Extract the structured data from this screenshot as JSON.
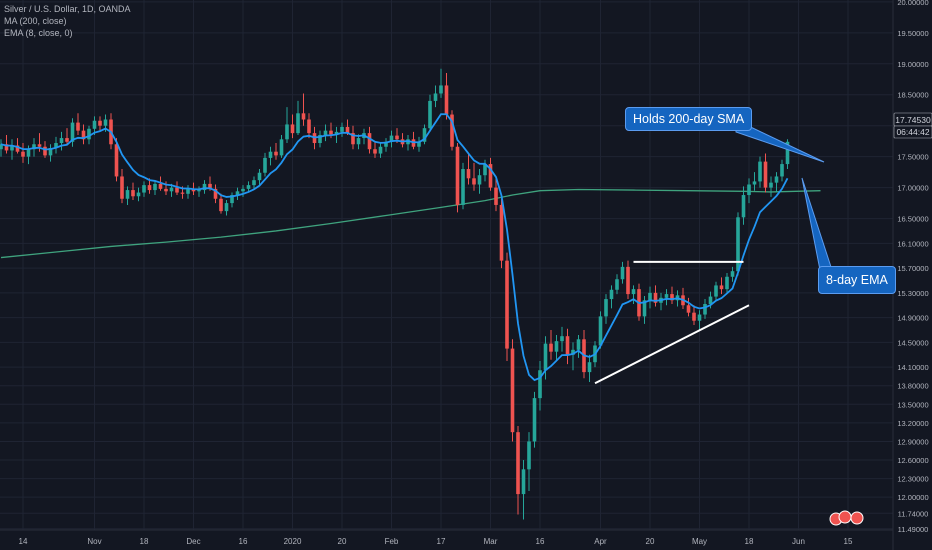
{
  "header": {
    "symbol": "Silver / U.S. Dollar, 1D, OANDA",
    "indicator1": "MA (200, close)",
    "indicator2": "EMA (8, close, 0)"
  },
  "annotations": {
    "sma_callout": "Holds 200-day SMA",
    "ema_callout": "8-day EMA"
  },
  "price_axis": {
    "current_price": "17.74530",
    "countdown": "06:44:42"
  },
  "colors": {
    "background": "#131722",
    "grid": "#1f2433",
    "up": "#26a69a",
    "down": "#ef5350",
    "sma": "#3fa37e",
    "ema": "#2196f3",
    "trendline": "#ffffff",
    "callout": "#1565c0"
  },
  "chart_data": {
    "type": "candlestick",
    "ylim": [
      11.47,
      20.03
    ],
    "y_ticks": [
      11.49,
      11.74,
      12.0,
      12.3,
      12.6,
      12.9,
      13.2,
      13.5,
      13.8,
      14.1,
      14.5,
      14.9,
      15.3,
      15.7,
      16.1,
      16.5,
      17.0,
      17.5,
      18.0,
      18.5,
      19.0,
      19.5,
      20.0
    ],
    "y_tick_labels": [
      "11.49000",
      "11.74000",
      "12.00000",
      "12.30000",
      "12.60000",
      "12.90000",
      "13.20000",
      "13.50000",
      "13.80000",
      "14.10000",
      "14.50000",
      "14.90000",
      "15.30000",
      "15.70000",
      "16.10000",
      "16.50000",
      "17.00000",
      "17.50000",
      "18.00000",
      "18.50000",
      "19.00000",
      "19.50000",
      "20.00000"
    ],
    "x_ticks": [
      {
        "i": 4,
        "label": "14"
      },
      {
        "i": 17,
        "label": "Nov"
      },
      {
        "i": 26,
        "label": "18"
      },
      {
        "i": 35,
        "label": "Dec"
      },
      {
        "i": 44,
        "label": "16"
      },
      {
        "i": 53,
        "label": "2020"
      },
      {
        "i": 62,
        "label": "20"
      },
      {
        "i": 71,
        "label": "Feb"
      },
      {
        "i": 80,
        "label": "17"
      },
      {
        "i": 89,
        "label": "Mar"
      },
      {
        "i": 98,
        "label": "16"
      },
      {
        "i": 109,
        "label": "Apr"
      },
      {
        "i": 118,
        "label": "20"
      },
      {
        "i": 127,
        "label": "May"
      },
      {
        "i": 136,
        "label": "18"
      },
      {
        "i": 145,
        "label": "Jun"
      },
      {
        "i": 154,
        "label": "15"
      }
    ],
    "candles": [
      [
        17.62,
        17.78,
        17.5,
        17.7
      ],
      [
        17.7,
        17.85,
        17.55,
        17.6
      ],
      [
        17.6,
        17.78,
        17.45,
        17.68
      ],
      [
        17.68,
        17.8,
        17.55,
        17.58
      ],
      [
        17.58,
        17.72,
        17.4,
        17.5
      ],
      [
        17.5,
        17.68,
        17.38,
        17.62
      ],
      [
        17.62,
        17.8,
        17.5,
        17.7
      ],
      [
        17.7,
        17.88,
        17.58,
        17.66
      ],
      [
        17.66,
        17.75,
        17.48,
        17.52
      ],
      [
        17.52,
        17.7,
        17.42,
        17.64
      ],
      [
        17.64,
        17.82,
        17.55,
        17.72
      ],
      [
        17.72,
        17.9,
        17.6,
        17.8
      ],
      [
        17.8,
        17.96,
        17.68,
        17.74
      ],
      [
        17.74,
        18.12,
        17.66,
        18.05
      ],
      [
        18.05,
        18.2,
        17.85,
        17.92
      ],
      [
        17.92,
        18.02,
        17.7,
        17.78
      ],
      [
        17.78,
        18.0,
        17.7,
        17.95
      ],
      [
        17.95,
        18.15,
        17.85,
        18.08
      ],
      [
        18.08,
        18.15,
        17.92,
        18.0
      ],
      [
        18.0,
        18.18,
        17.9,
        18.1
      ],
      [
        18.1,
        18.2,
        17.62,
        17.7
      ],
      [
        17.7,
        17.8,
        17.1,
        17.18
      ],
      [
        17.18,
        17.3,
        16.75,
        16.82
      ],
      [
        16.82,
        17.02,
        16.72,
        16.96
      ],
      [
        16.96,
        17.08,
        16.8,
        16.86
      ],
      [
        16.86,
        17.0,
        16.78,
        16.92
      ],
      [
        16.92,
        17.1,
        16.85,
        17.04
      ],
      [
        17.04,
        17.15,
        16.9,
        16.96
      ],
      [
        16.96,
        17.12,
        16.88,
        17.06
      ],
      [
        17.06,
        17.18,
        16.95,
        16.98
      ],
      [
        16.98,
        17.1,
        16.88,
        16.94
      ],
      [
        16.94,
        17.06,
        16.85,
        17.0
      ],
      [
        17.0,
        17.1,
        16.88,
        16.92
      ],
      [
        16.92,
        17.02,
        16.82,
        16.9
      ],
      [
        16.9,
        17.04,
        16.82,
        16.98
      ],
      [
        16.98,
        17.08,
        16.88,
        16.94
      ],
      [
        16.94,
        17.02,
        16.85,
        16.96
      ],
      [
        16.96,
        17.12,
        16.9,
        17.06
      ],
      [
        17.06,
        17.18,
        16.95,
        16.98
      ],
      [
        16.98,
        17.05,
        16.75,
        16.82
      ],
      [
        16.82,
        16.9,
        16.58,
        16.62
      ],
      [
        16.62,
        16.8,
        16.55,
        16.75
      ],
      [
        16.75,
        16.92,
        16.68,
        16.88
      ],
      [
        16.88,
        17.0,
        16.8,
        16.94
      ],
      [
        16.94,
        17.04,
        16.85,
        16.98
      ],
      [
        16.98,
        17.1,
        16.92,
        17.04
      ],
      [
        17.04,
        17.18,
        16.98,
        17.12
      ],
      [
        17.12,
        17.3,
        17.05,
        17.24
      ],
      [
        17.24,
        17.56,
        17.18,
        17.48
      ],
      [
        17.48,
        17.66,
        17.36,
        17.58
      ],
      [
        17.58,
        17.72,
        17.45,
        17.52
      ],
      [
        17.52,
        17.85,
        17.48,
        17.78
      ],
      [
        17.78,
        18.3,
        17.72,
        18.02
      ],
      [
        18.02,
        18.18,
        17.8,
        17.88
      ],
      [
        17.88,
        18.4,
        17.85,
        18.2
      ],
      [
        18.2,
        18.52,
        18.0,
        18.1
      ],
      [
        18.1,
        18.2,
        17.8,
        17.88
      ],
      [
        17.88,
        17.98,
        17.62,
        17.72
      ],
      [
        17.72,
        17.92,
        17.65,
        17.85
      ],
      [
        17.85,
        18.02,
        17.75,
        17.92
      ],
      [
        17.92,
        18.05,
        17.8,
        17.86
      ],
      [
        17.86,
        17.98,
        17.72,
        17.9
      ],
      [
        17.9,
        18.05,
        17.82,
        17.98
      ],
      [
        17.98,
        18.1,
        17.85,
        17.88
      ],
      [
        17.88,
        18.0,
        17.62,
        17.7
      ],
      [
        17.7,
        17.86,
        17.62,
        17.8
      ],
      [
        17.8,
        17.95,
        17.7,
        17.88
      ],
      [
        17.88,
        17.98,
        17.55,
        17.62
      ],
      [
        17.62,
        17.75,
        17.48,
        17.55
      ],
      [
        17.55,
        17.72,
        17.48,
        17.66
      ],
      [
        17.66,
        17.8,
        17.58,
        17.74
      ],
      [
        17.74,
        17.92,
        17.65,
        17.84
      ],
      [
        17.84,
        17.96,
        17.72,
        17.78
      ],
      [
        17.78,
        17.88,
        17.65,
        17.7
      ],
      [
        17.7,
        17.85,
        17.6,
        17.78
      ],
      [
        17.78,
        17.9,
        17.62,
        17.66
      ],
      [
        17.66,
        17.82,
        17.58,
        17.74
      ],
      [
        17.74,
        18.02,
        17.7,
        17.96
      ],
      [
        17.96,
        18.5,
        17.9,
        18.4
      ],
      [
        18.4,
        18.65,
        18.3,
        18.52
      ],
      [
        18.52,
        18.92,
        18.45,
        18.65
      ],
      [
        18.65,
        18.85,
        18.1,
        18.18
      ],
      [
        18.18,
        18.25,
        17.6,
        17.66
      ],
      [
        17.66,
        17.72,
        16.6,
        16.72
      ],
      [
        16.72,
        17.4,
        16.65,
        17.3
      ],
      [
        17.3,
        17.55,
        17.05,
        17.15
      ],
      [
        17.15,
        17.4,
        16.95,
        17.05
      ],
      [
        17.05,
        17.3,
        16.9,
        17.2
      ],
      [
        17.2,
        17.45,
        17.1,
        17.38
      ],
      [
        17.38,
        17.48,
        16.95,
        17.0
      ],
      [
        17.0,
        17.15,
        16.62,
        16.72
      ],
      [
        16.72,
        16.82,
        15.7,
        15.82
      ],
      [
        15.82,
        15.95,
        14.2,
        14.4
      ],
      [
        14.4,
        14.55,
        12.9,
        13.05
      ],
      [
        13.05,
        13.15,
        11.72,
        12.05
      ],
      [
        12.05,
        12.6,
        11.64,
        12.45
      ],
      [
        12.45,
        13.05,
        12.1,
        12.9
      ],
      [
        12.9,
        13.7,
        12.8,
        13.6
      ],
      [
        13.6,
        14.2,
        13.4,
        14.05
      ],
      [
        14.05,
        14.6,
        13.9,
        14.48
      ],
      [
        14.48,
        14.7,
        14.22,
        14.35
      ],
      [
        14.35,
        14.62,
        14.2,
        14.52
      ],
      [
        14.52,
        14.75,
        14.35,
        14.6
      ],
      [
        14.6,
        14.72,
        14.15,
        14.3
      ],
      [
        14.3,
        14.5,
        14.05,
        14.38
      ],
      [
        14.38,
        14.62,
        14.25,
        14.55
      ],
      [
        14.55,
        14.7,
        13.92,
        14.02
      ],
      [
        14.02,
        14.3,
        13.86,
        14.18
      ],
      [
        14.18,
        14.52,
        14.1,
        14.45
      ],
      [
        14.45,
        15.0,
        14.4,
        14.92
      ],
      [
        14.92,
        15.28,
        14.8,
        15.2
      ],
      [
        15.2,
        15.42,
        15.05,
        15.35
      ],
      [
        15.35,
        15.6,
        15.28,
        15.52
      ],
      [
        15.52,
        15.8,
        15.45,
        15.72
      ],
      [
        15.72,
        15.82,
        15.2,
        15.28
      ],
      [
        15.28,
        15.42,
        15.12,
        15.36
      ],
      [
        15.36,
        15.45,
        14.85,
        14.92
      ],
      [
        14.92,
        15.25,
        14.8,
        15.18
      ],
      [
        15.18,
        15.4,
        15.05,
        15.3
      ],
      [
        15.3,
        15.42,
        15.08,
        15.14
      ],
      [
        15.14,
        15.3,
        15.02,
        15.22
      ],
      [
        15.22,
        15.36,
        15.1,
        15.28
      ],
      [
        15.28,
        15.4,
        15.12,
        15.18
      ],
      [
        15.18,
        15.34,
        15.08,
        15.26
      ],
      [
        15.26,
        15.38,
        15.04,
        15.1
      ],
      [
        15.1,
        15.22,
        14.92,
        14.98
      ],
      [
        14.98,
        15.1,
        14.78,
        14.85
      ],
      [
        14.85,
        15.02,
        14.7,
        14.95
      ],
      [
        14.95,
        15.2,
        14.88,
        15.12
      ],
      [
        15.12,
        15.32,
        15.05,
        15.24
      ],
      [
        15.24,
        15.48,
        15.18,
        15.42
      ],
      [
        15.42,
        15.55,
        15.28,
        15.36
      ],
      [
        15.36,
        15.62,
        15.3,
        15.56
      ],
      [
        15.56,
        15.72,
        15.48,
        15.65
      ],
      [
        15.65,
        16.6,
        15.58,
        16.52
      ],
      [
        16.52,
        17.02,
        16.4,
        16.88
      ],
      [
        16.88,
        17.15,
        16.75,
        17.05
      ],
      [
        17.05,
        17.25,
        16.95,
        17.1
      ],
      [
        17.1,
        17.5,
        17.0,
        17.42
      ],
      [
        17.42,
        17.55,
        16.92,
        17.0
      ],
      [
        17.0,
        17.18,
        16.85,
        17.08
      ],
      [
        17.08,
        17.25,
        16.92,
        17.18
      ],
      [
        17.18,
        17.45,
        17.1,
        17.38
      ],
      [
        17.38,
        17.78,
        17.3,
        17.74
      ]
    ],
    "sma200": [
      [
        0,
        15.87
      ],
      [
        10,
        15.96
      ],
      [
        20,
        16.05
      ],
      [
        30,
        16.12
      ],
      [
        40,
        16.2
      ],
      [
        50,
        16.3
      ],
      [
        60,
        16.42
      ],
      [
        70,
        16.55
      ],
      [
        80,
        16.68
      ],
      [
        88,
        16.79
      ],
      [
        93,
        16.88
      ],
      [
        98,
        16.95
      ],
      [
        105,
        16.97
      ],
      [
        115,
        16.96
      ],
      [
        125,
        16.95
      ],
      [
        135,
        16.94
      ],
      [
        140,
        16.93
      ],
      [
        149,
        16.95
      ]
    ],
    "trendlines": [
      {
        "from": [
          115,
          15.8
        ],
        "to": [
          135,
          15.8
        ]
      },
      {
        "from": [
          108,
          13.84
        ],
        "to": [
          136,
          15.1
        ]
      }
    ]
  }
}
